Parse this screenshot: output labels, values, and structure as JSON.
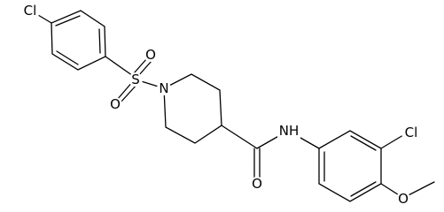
{
  "atoms": [
    {
      "label": "Cl"
    },
    {
      "label": "S"
    },
    {
      "label": "O"
    },
    {
      "label": "O"
    },
    {
      "label": "N"
    },
    {
      "label": "O"
    },
    {
      "label": "NH"
    },
    {
      "label": "Cl"
    },
    {
      "label": "O"
    }
  ]
}
